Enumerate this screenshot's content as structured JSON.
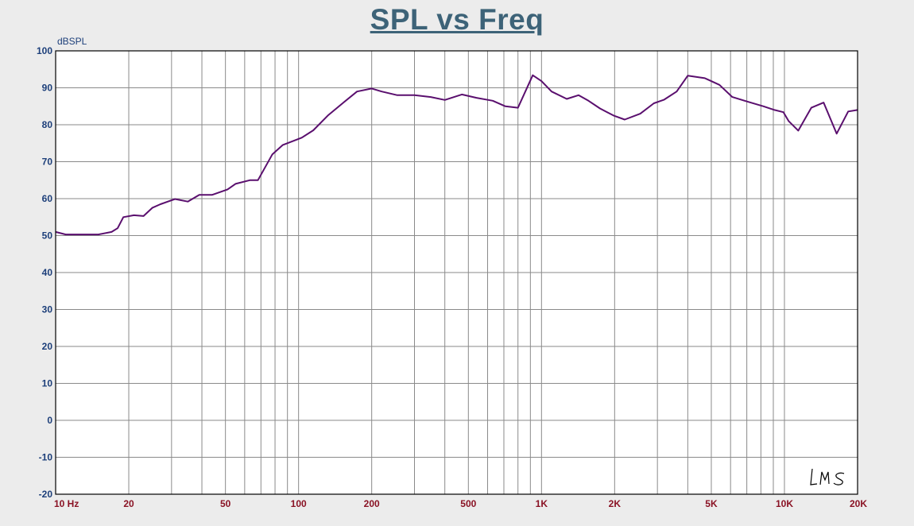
{
  "chart_data": {
    "type": "line",
    "title": "SPL vs Freq",
    "ylabel": "dBSPL",
    "xlabel": "",
    "xscale": "log",
    "xlim": [
      10,
      20000
    ],
    "ylim": [
      -20,
      100
    ],
    "yticks": [
      100,
      90,
      80,
      70,
      60,
      50,
      40,
      30,
      20,
      10,
      0,
      -10,
      -20
    ],
    "xtick_labels": [
      {
        "freq": 10,
        "label": "10  Hz"
      },
      {
        "freq": 20,
        "label": "20"
      },
      {
        "freq": 50,
        "label": "50"
      },
      {
        "freq": 100,
        "label": "100"
      },
      {
        "freq": 200,
        "label": "200"
      },
      {
        "freq": 500,
        "label": "500"
      },
      {
        "freq": 1000,
        "label": "1K"
      },
      {
        "freq": 2000,
        "label": "2K"
      },
      {
        "freq": 5000,
        "label": "5K"
      },
      {
        "freq": 10000,
        "label": "10K"
      },
      {
        "freq": 20000,
        "label": "20K"
      }
    ],
    "grid": true,
    "series": [
      {
        "color": "#5a0f6e",
        "x": [
          10,
          11,
          13,
          15,
          17,
          18,
          19,
          21,
          23,
          25,
          27,
          31,
          35,
          39,
          44,
          51,
          55,
          63,
          68,
          78,
          86,
          103,
          115,
          132,
          153,
          174,
          200,
          220,
          255,
          300,
          350,
          400,
          470,
          540,
          630,
          710,
          800,
          920,
          1000,
          1100,
          1270,
          1420,
          1560,
          1740,
          1980,
          2200,
          2550,
          2900,
          3200,
          3600,
          4000,
          4700,
          5400,
          6100,
          7100,
          8200,
          9100,
          9900,
          10400,
          11400,
          12900,
          14500,
          16400,
          18300,
          20000
        ],
        "y": [
          51,
          50.3,
          50.3,
          50.3,
          51,
          52,
          55,
          55.5,
          55.3,
          57.5,
          58.5,
          59.9,
          59.2,
          61,
          61,
          62.5,
          64,
          65,
          65,
          72,
          74.5,
          76.5,
          78.5,
          82.5,
          86,
          89,
          89.8,
          89,
          88,
          88,
          87.5,
          86.7,
          88.2,
          87.3,
          86.5,
          85,
          84.6,
          93.4,
          91.8,
          89,
          87,
          88,
          86.5,
          84.4,
          82.5,
          81.4,
          83,
          85.8,
          86.8,
          89,
          93.3,
          92.6,
          90.8,
          87.5,
          86.2,
          85,
          84,
          83.4,
          81,
          78.4,
          84.6,
          86,
          77.6,
          83.6,
          84
        ]
      }
    ]
  },
  "watermark": "LMS"
}
